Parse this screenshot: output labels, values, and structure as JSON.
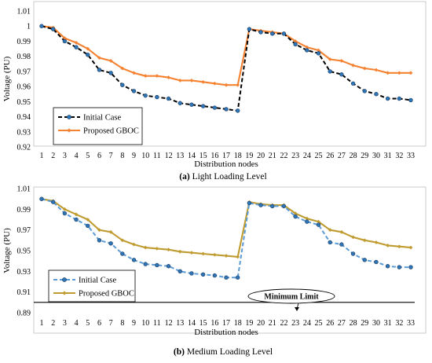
{
  "chart_data": [
    {
      "type": "line",
      "xlabel": "Distribution nodes",
      "ylabel": "Voltage (PU)",
      "caption_letter": "(a)",
      "caption_text": " Light Loading Level",
      "ylim": [
        0.92,
        1.01
      ],
      "yticks": [
        "0.92",
        "0.93",
        "0.94",
        "0.95",
        "0.96",
        "0.97",
        "0.98",
        "0.99",
        "1",
        "1.01"
      ],
      "x": [
        1,
        2,
        3,
        4,
        5,
        6,
        7,
        8,
        9,
        10,
        11,
        12,
        13,
        14,
        15,
        16,
        17,
        18,
        19,
        20,
        21,
        22,
        23,
        24,
        25,
        26,
        27,
        28,
        29,
        30,
        31,
        32,
        33
      ],
      "legend_position": "bottom-left",
      "grid": false,
      "series": [
        {
          "name": "Initial Case",
          "color": "#000000",
          "marker_color": "#2e75b6",
          "dash": true,
          "values": [
            1.0,
            0.998,
            0.99,
            0.986,
            0.981,
            0.971,
            0.969,
            0.961,
            0.957,
            0.954,
            0.953,
            0.952,
            0.949,
            0.948,
            0.947,
            0.946,
            0.945,
            0.944,
            0.998,
            0.996,
            0.995,
            0.995,
            0.988,
            0.984,
            0.982,
            0.97,
            0.968,
            0.962,
            0.957,
            0.955,
            0.952,
            0.952,
            0.951
          ]
        },
        {
          "name": "Proposed GBOC",
          "color": "#f58231",
          "marker_color": "#f58231",
          "dash": false,
          "values": [
            1.0,
            0.999,
            0.992,
            0.989,
            0.985,
            0.979,
            0.977,
            0.972,
            0.969,
            0.967,
            0.967,
            0.966,
            0.964,
            0.964,
            0.963,
            0.962,
            0.961,
            0.961,
            0.998,
            0.997,
            0.996,
            0.995,
            0.99,
            0.986,
            0.984,
            0.978,
            0.977,
            0.974,
            0.972,
            0.971,
            0.969,
            0.969,
            0.969
          ]
        }
      ]
    },
    {
      "type": "line",
      "xlabel": "Distribution nodes",
      "ylabel": "Voltage (PU)",
      "caption_letter": "(b)",
      "caption_text": " Medium Loading Level",
      "ylim": [
        0.89,
        1.01
      ],
      "yticks": [
        "0.89",
        "0.91",
        "0.93",
        "0.95",
        "0.97",
        "0.99",
        "1.01"
      ],
      "x": [
        1,
        2,
        3,
        4,
        5,
        6,
        7,
        8,
        9,
        10,
        11,
        12,
        13,
        14,
        15,
        16,
        17,
        18,
        19,
        20,
        21,
        22,
        23,
        24,
        25,
        26,
        27,
        28,
        29,
        30,
        31,
        32,
        33
      ],
      "legend_position": "bottom-left",
      "grid": false,
      "annotation": "Minimum Limit",
      "limit_value": 0.9,
      "series": [
        {
          "name": "Initial Case",
          "color": "#5b9bd5",
          "marker_color": "#2e75b6",
          "dash": true,
          "values": [
            1.0,
            0.997,
            0.986,
            0.98,
            0.974,
            0.96,
            0.957,
            0.947,
            0.941,
            0.937,
            0.936,
            0.935,
            0.93,
            0.928,
            0.927,
            0.926,
            0.924,
            0.924,
            0.996,
            0.994,
            0.993,
            0.993,
            0.983,
            0.978,
            0.975,
            0.958,
            0.956,
            0.947,
            0.941,
            0.939,
            0.935,
            0.934,
            0.934
          ]
        },
        {
          "name": "Proposed GBOC",
          "color": "#bf9b30",
          "marker_color": "#bf9b30",
          "dash": false,
          "values": [
            1.0,
            0.998,
            0.99,
            0.985,
            0.98,
            0.97,
            0.968,
            0.96,
            0.956,
            0.953,
            0.952,
            0.951,
            0.949,
            0.948,
            0.947,
            0.946,
            0.945,
            0.944,
            0.997,
            0.995,
            0.994,
            0.994,
            0.986,
            0.981,
            0.978,
            0.97,
            0.968,
            0.963,
            0.96,
            0.958,
            0.955,
            0.954,
            0.953
          ]
        }
      ]
    }
  ]
}
